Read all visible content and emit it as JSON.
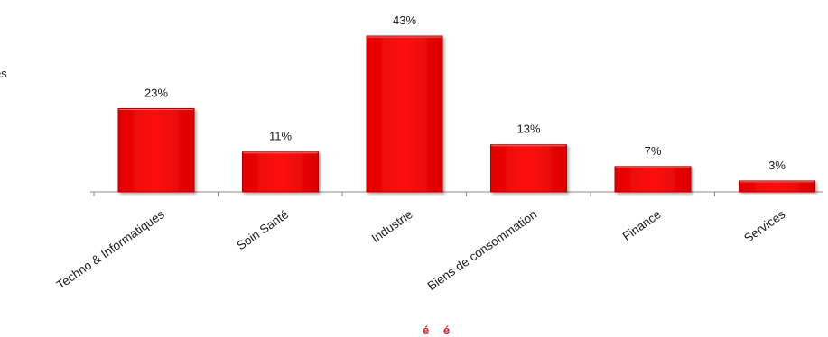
{
  "chart_data": {
    "type": "bar",
    "categories": [
      "Techno & Informatiques",
      "Soin Santé",
      "Industrie",
      "Biens de consommation",
      "Finance",
      "Services"
    ],
    "values": [
      23,
      11,
      43,
      13,
      7,
      3
    ],
    "value_labels": [
      "23%",
      "11%",
      "43%",
      "13%",
      "7%",
      "3%"
    ],
    "ylim": [
      0,
      43
    ],
    "bar_color": "#ff0000",
    "bar_edge_color": "#b00000",
    "grid": false,
    "legend": "none"
  },
  "page": {
    "cut_left_text": "es",
    "cut_bottom_text": "é é"
  }
}
